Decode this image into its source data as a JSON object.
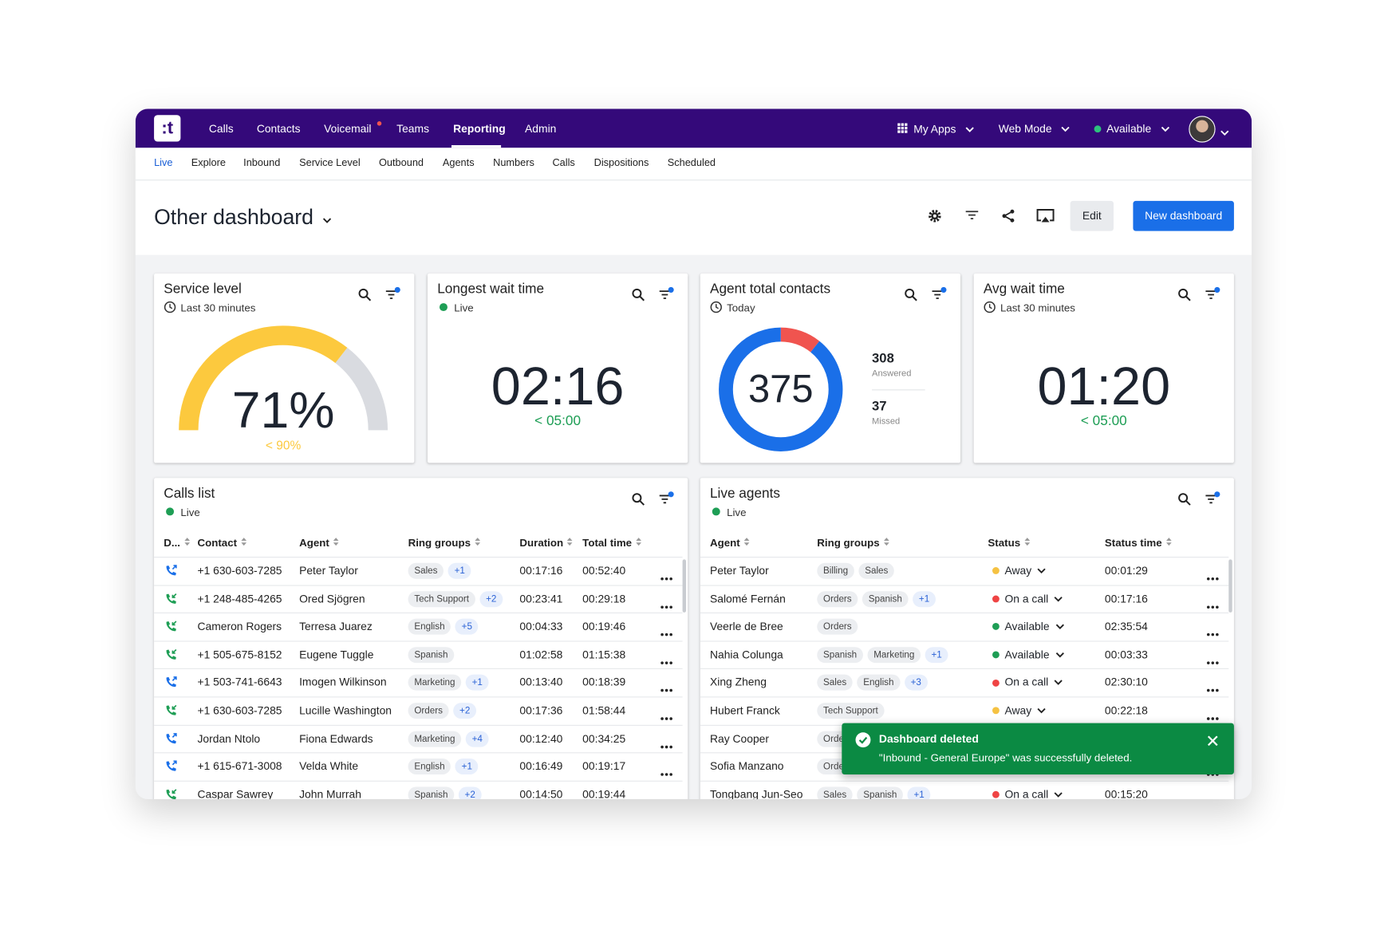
{
  "app": {
    "nav": [
      "Calls",
      "Contacts",
      "Voicemail",
      "Teams",
      "Reporting",
      "Admin"
    ],
    "menus": [
      "My Apps",
      "Web Mode",
      "Available"
    ],
    "tabs": [
      "Live",
      "Explore",
      "Inbound",
      "Service Level",
      "Outbound",
      "Agents",
      "Numbers",
      "Calls",
      "Dispositions",
      "Scheduled"
    ]
  },
  "header": {
    "title": "Other dashboard",
    "edit": "Edit",
    "new_dashboard": "New dashboard"
  },
  "widgets": [
    {
      "title": "Service level",
      "subtitle": "Last 30 minutes",
      "value": 71,
      "value_label": "71%",
      "target": "< 90%",
      "color": "#fcc93e"
    },
    {
      "title": "Longest wait time",
      "subtitle": "Live",
      "value": "02:16",
      "target": "< 05:00"
    },
    {
      "title": "Agent total contacts",
      "subtitle": "Today",
      "total": 375,
      "answered": 308,
      "answered_label": "Answered",
      "answered_color": "#1a6fe8",
      "missed": 37,
      "missed_label": "Missed",
      "missed_color": "#f0544f"
    },
    {
      "title": "Avg wait time",
      "subtitle": "Last 30 minutes",
      "value": "01:20",
      "target": "< 05:00"
    }
  ],
  "calls_list": {
    "title": "Calls list",
    "subtitle": "Live",
    "columns": [
      "D...",
      "Contact",
      "Agent",
      "Ring groups",
      "Duration",
      "Total time"
    ],
    "rows": [
      {
        "contact": "+1 630-603-7285",
        "agent": "Peter Taylor",
        "ring_groups": [
          "Sales"
        ],
        "more": "+1",
        "duration": "00:17:16",
        "total_time": "00:52:40"
      },
      {
        "contact": "+1 248-485-4265",
        "agent": "Ored Sjögren",
        "ring_groups": [
          "Tech Support"
        ],
        "more": "+2",
        "duration": "00:23:41",
        "total_time": "00:29:18"
      },
      {
        "contact": "Cameron Rogers",
        "agent": "Terresa Juarez",
        "ring_groups": [
          "English"
        ],
        "more": "+5",
        "duration": "00:04:33",
        "total_time": "00:19:46"
      },
      {
        "contact": "+1 505-675-8152",
        "agent": "Eugene Tuggle",
        "ring_groups": [
          "Spanish"
        ],
        "duration": "01:02:58",
        "total_time": "01:15:38"
      },
      {
        "contact": "+1 503-741-6643",
        "agent": "Imogen Wilkinson",
        "ring_groups": [
          "Marketing"
        ],
        "more": "+1",
        "duration": "00:13:40",
        "total_time": "00:18:39"
      },
      {
        "contact": "+1 630-603-7285",
        "agent": "Lucille Washington",
        "ring_groups": [
          "Orders"
        ],
        "more": "+2",
        "duration": "00:17:36",
        "total_time": "01:58:44"
      },
      {
        "contact": "Jordan Ntolo",
        "agent": "Fiona Edwards",
        "ring_groups": [
          "Marketing"
        ],
        "more": "+4",
        "duration": "00:12:40",
        "total_time": "00:34:25"
      },
      {
        "contact": "+1 615-671-3008",
        "agent": "Velda White",
        "ring_groups": [
          "English"
        ],
        "more": "+1",
        "duration": "00:16:49",
        "total_time": "00:19:17"
      },
      {
        "contact": "Caspar Sawrey",
        "agent": "John Murrah",
        "ring_groups": [
          "Spanish"
        ],
        "more": "+2",
        "duration": "00:14:50",
        "total_time": "00:19:44"
      }
    ]
  },
  "live_agents": {
    "title": "Live agents",
    "subtitle": "Live",
    "columns": [
      "Agent",
      "Ring groups",
      "Status",
      "Status time"
    ],
    "rows": [
      {
        "agent": "Peter Taylor",
        "ring_groups": [
          "Billing",
          "Sales"
        ],
        "status": "Away",
        "status_color": "#f5c242",
        "status_time": "00:01:29"
      },
      {
        "agent": "Salomé Fernán",
        "ring_groups": [
          "Orders",
          "Spanish"
        ],
        "more": "+1",
        "status": "On a call",
        "status_color": "#ef4444",
        "status_time": "00:17:16"
      },
      {
        "agent": "Veerle de Bree",
        "ring_groups": [
          "Orders"
        ],
        "status": "Available",
        "status_color": "#1e9e55",
        "status_time": "02:35:54"
      },
      {
        "agent": "Nahia Colunga",
        "ring_groups": [
          "Spanish",
          "Marketing"
        ],
        "more": "+1",
        "status": "Available",
        "status_color": "#1e9e55",
        "status_time": "00:03:33"
      },
      {
        "agent": "Xing Zheng",
        "ring_groups": [
          "Sales",
          "English"
        ],
        "more": "+3",
        "status": "On a call",
        "status_color": "#ef4444",
        "status_time": "02:30:10"
      },
      {
        "agent": "Hubert Franck",
        "ring_groups": [
          "Tech Support"
        ],
        "status": "Away",
        "status_color": "#f5c242",
        "status_time": "00:22:18"
      },
      {
        "agent": "Ray Cooper",
        "ring_groups": [
          "Orders"
        ]
      },
      {
        "agent": "Sofia Manzano",
        "ring_groups": [
          "Orders"
        ]
      },
      {
        "agent": "Tongbang Jun-Seo",
        "ring_groups": [
          "Sales",
          "Spanish"
        ],
        "more": "+1",
        "status": "On a call",
        "status_color": "#ef4444",
        "status_time": "00:15:20"
      }
    ]
  },
  "toast": {
    "title": "Dashboard deleted",
    "message": "\"Inbound - General Europe\" was successfully deleted."
  }
}
